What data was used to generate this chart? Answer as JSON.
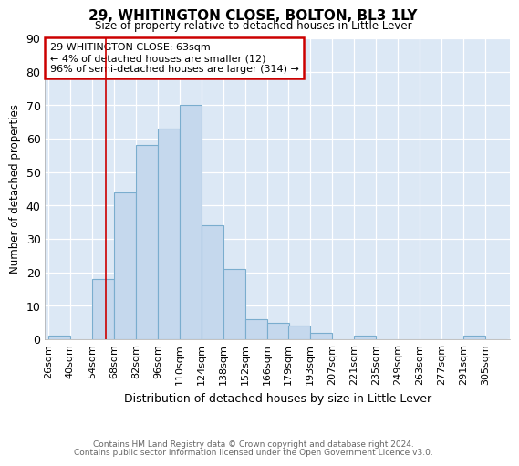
{
  "title": "29, WHITINGTON CLOSE, BOLTON, BL3 1LY",
  "subtitle": "Size of property relative to detached houses in Little Lever",
  "xlabel": "Distribution of detached houses by size in Little Lever",
  "ylabel": "Number of detached properties",
  "bar_labels": [
    "26sqm",
    "40sqm",
    "54sqm",
    "68sqm",
    "82sqm",
    "96sqm",
    "110sqm",
    "124sqm",
    "138sqm",
    "152sqm",
    "166sqm",
    "179sqm",
    "193sqm",
    "207sqm",
    "221sqm",
    "235sqm",
    "249sqm",
    "263sqm",
    "277sqm",
    "291sqm",
    "305sqm"
  ],
  "bar_values": [
    1,
    0,
    18,
    44,
    58,
    63,
    70,
    34,
    21,
    6,
    5,
    4,
    2,
    0,
    1,
    0,
    0,
    0,
    0,
    1,
    0
  ],
  "bin_edges": [
    26,
    40,
    54,
    68,
    82,
    96,
    110,
    124,
    138,
    152,
    166,
    179,
    193,
    207,
    221,
    235,
    249,
    263,
    277,
    291,
    305
  ],
  "bin_width": 14,
  "ylim": [
    0,
    90
  ],
  "yticks": [
    0,
    10,
    20,
    30,
    40,
    50,
    60,
    70,
    80,
    90
  ],
  "bar_color": "#c5d8ed",
  "bar_edge_color": "#7aadce",
  "vline_x": 63,
  "vline_color": "#cc0000",
  "annotation_text": "29 WHITINGTON CLOSE: 63sqm\n← 4% of detached houses are smaller (12)\n96% of semi-detached houses are larger (314) →",
  "annotation_box_color": "#ffffff",
  "annotation_box_edge": "#cc0000",
  "fig_bg_color": "#ffffff",
  "plot_bg_color": "#dce8f5",
  "grid_color": "#ffffff",
  "footer_line1": "Contains HM Land Registry data © Crown copyright and database right 2024.",
  "footer_line2": "Contains public sector information licensed under the Open Government Licence v3.0."
}
